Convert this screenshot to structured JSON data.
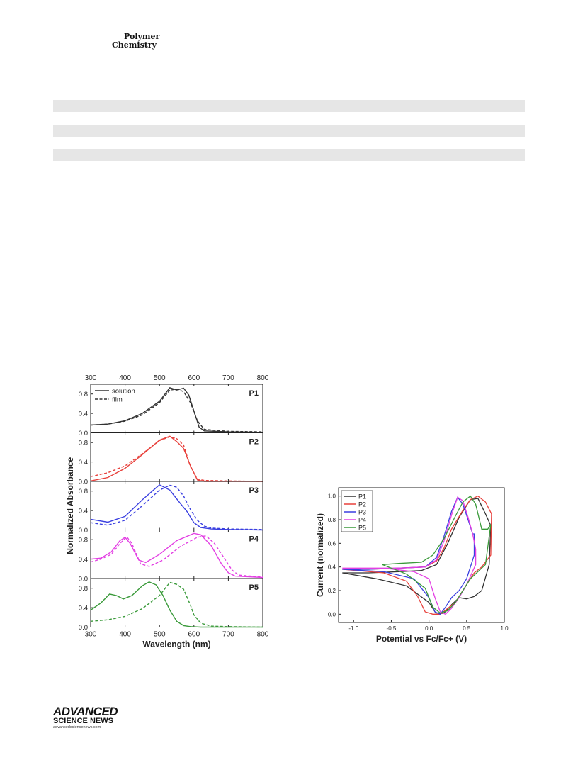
{
  "header": {
    "journal_line1": "Polymer",
    "journal_line2": "Chemistry"
  },
  "footer": {
    "publisher_line1": "ADVANCED",
    "publisher_line2": "SCIENCE NEWS",
    "publisher_url": "advancedsciencenews.com"
  },
  "colors": {
    "P1": "#333333",
    "P2": "#e8413c",
    "P3": "#3a3fe0",
    "P4": "#e33fe3",
    "P5": "#3a9a3a"
  },
  "chart_data": [
    {
      "type": "line",
      "xlabel": "Wavelength (nm)",
      "ylabel": "Normalized Absorbance",
      "xlim": [
        300,
        800
      ],
      "ylim": [
        0,
        1.0
      ],
      "xticks": [
        "300",
        "400",
        "500",
        "600",
        "700",
        "800"
      ],
      "yticks": [
        "0.0",
        "0.4",
        "0.8"
      ],
      "legend": {
        "position": "top-left",
        "entries": [
          "solution",
          "film"
        ]
      },
      "panels": [
        {
          "label": "P1",
          "series": [
            {
              "name": "solution",
              "style": "solid",
              "x": [
                300,
                350,
                400,
                450,
                500,
                530,
                550,
                570,
                585,
                600,
                615,
                630,
                700,
                800
              ],
              "y": [
                0.16,
                0.18,
                0.25,
                0.4,
                0.65,
                0.93,
                0.88,
                0.92,
                0.78,
                0.45,
                0.12,
                0.04,
                0.02,
                0.01
              ]
            },
            {
              "name": "film",
              "style": "dashed",
              "x": [
                300,
                350,
                400,
                450,
                500,
                530,
                550,
                570,
                590,
                610,
                630,
                700,
                800
              ],
              "y": [
                0.16,
                0.18,
                0.24,
                0.37,
                0.62,
                0.88,
                0.9,
                0.85,
                0.62,
                0.25,
                0.07,
                0.03,
                0.02
              ]
            }
          ]
        },
        {
          "label": "P2",
          "series": [
            {
              "name": "solution",
              "style": "solid",
              "x": [
                300,
                350,
                400,
                450,
                500,
                530,
                550,
                570,
                590,
                610,
                630,
                700,
                800
              ],
              "y": [
                0.01,
                0.08,
                0.27,
                0.55,
                0.85,
                0.93,
                0.82,
                0.68,
                0.32,
                0.03,
                0.0,
                0.0,
                0.0
              ]
            },
            {
              "name": "film",
              "style": "dashed",
              "x": [
                300,
                350,
                400,
                450,
                500,
                530,
                550,
                570,
                590,
                610,
                630,
                700,
                800
              ],
              "y": [
                0.1,
                0.18,
                0.32,
                0.57,
                0.84,
                0.92,
                0.88,
                0.75,
                0.3,
                0.05,
                0.02,
                0.01,
                0.0
              ]
            }
          ]
        },
        {
          "label": "P3",
          "series": [
            {
              "name": "solution",
              "style": "solid",
              "x": [
                300,
                350,
                400,
                450,
                500,
                530,
                560,
                580,
                600,
                620,
                650,
                700,
                800
              ],
              "y": [
                0.22,
                0.16,
                0.28,
                0.62,
                0.93,
                0.82,
                0.55,
                0.38,
                0.15,
                0.05,
                0.02,
                0.01,
                0.0
              ]
            },
            {
              "name": "film",
              "style": "dashed",
              "x": [
                300,
                350,
                400,
                450,
                500,
                530,
                550,
                570,
                590,
                610,
                630,
                650,
                700,
                800
              ],
              "y": [
                0.15,
                0.1,
                0.2,
                0.5,
                0.82,
                0.92,
                0.88,
                0.7,
                0.42,
                0.2,
                0.08,
                0.04,
                0.02,
                0.01
              ]
            }
          ]
        },
        {
          "label": "P4",
          "series": [
            {
              "name": "solution",
              "style": "solid",
              "x": [
                300,
                330,
                360,
                385,
                400,
                415,
                440,
                460,
                500,
                550,
                600,
                620,
                650,
                680,
                700,
                720,
                800
              ],
              "y": [
                0.4,
                0.42,
                0.55,
                0.78,
                0.85,
                0.72,
                0.38,
                0.33,
                0.5,
                0.78,
                0.93,
                0.9,
                0.68,
                0.3,
                0.12,
                0.05,
                0.02
              ]
            },
            {
              "name": "film",
              "style": "dashed",
              "x": [
                300,
                330,
                360,
                385,
                405,
                420,
                445,
                470,
                510,
                560,
                610,
                635,
                660,
                690,
                710,
                730,
                800
              ],
              "y": [
                0.34,
                0.4,
                0.5,
                0.72,
                0.86,
                0.72,
                0.3,
                0.25,
                0.38,
                0.66,
                0.85,
                0.88,
                0.72,
                0.4,
                0.18,
                0.07,
                0.03
              ]
            }
          ]
        },
        {
          "label": "P5",
          "series": [
            {
              "name": "solution",
              "style": "solid",
              "x": [
                300,
                330,
                355,
                375,
                395,
                420,
                450,
                470,
                490,
                510,
                530,
                550,
                570,
                590,
                620,
                700,
                800
              ],
              "y": [
                0.35,
                0.5,
                0.68,
                0.65,
                0.58,
                0.65,
                0.85,
                0.93,
                0.87,
                0.65,
                0.35,
                0.12,
                0.03,
                0.01,
                0.0,
                0.0,
                0.0
              ]
            },
            {
              "name": "film",
              "style": "dashed",
              "x": [
                300,
                350,
                400,
                450,
                500,
                530,
                550,
                570,
                590,
                600,
                620,
                650,
                700,
                800
              ],
              "y": [
                0.12,
                0.15,
                0.22,
                0.38,
                0.65,
                0.92,
                0.88,
                0.78,
                0.45,
                0.25,
                0.08,
                0.02,
                0.01,
                0.0
              ]
            }
          ]
        }
      ]
    },
    {
      "type": "line",
      "xlabel": "Potential vs Fc/Fc+ (V)",
      "ylabel": "Current (normalized)",
      "xlim": [
        -1.2,
        1.0
      ],
      "ylim": [
        -0.07,
        1.07
      ],
      "xticks": [
        "-1.0",
        "-0.5",
        "0.0",
        "0.5",
        "1.0"
      ],
      "yticks": [
        "0.0",
        "0.2",
        "0.4",
        "0.6",
        "0.8",
        "1.0"
      ],
      "legend": {
        "position": "top-left",
        "entries": [
          "P1",
          "P2",
          "P3",
          "P4",
          "P5"
        ]
      },
      "series": [
        {
          "name": "P1",
          "x": [
            -1.15,
            -0.8,
            -0.4,
            -0.1,
            0.1,
            0.25,
            0.4,
            0.55,
            0.65,
            0.75,
            0.82,
            0.8,
            0.7,
            0.6,
            0.5,
            0.4,
            0.3,
            0.2,
            0.1,
            0.0,
            -0.3,
            -0.7,
            -1.15
          ],
          "y": [
            0.35,
            0.35,
            0.36,
            0.37,
            0.42,
            0.6,
            0.82,
            0.97,
            0.98,
            0.85,
            0.75,
            0.42,
            0.2,
            0.15,
            0.13,
            0.14,
            0.08,
            0.01,
            0.0,
            0.1,
            0.24,
            0.3,
            0.35
          ]
        },
        {
          "name": "P2",
          "x": [
            -1.15,
            -0.8,
            -0.4,
            -0.05,
            0.1,
            0.2,
            0.3,
            0.45,
            0.55,
            0.65,
            0.75,
            0.83,
            0.82,
            0.7,
            0.6,
            0.45,
            0.35,
            0.25,
            0.15,
            0.05,
            -0.05,
            -0.15,
            -0.3,
            -0.6,
            -1.15
          ],
          "y": [
            0.38,
            0.38,
            0.39,
            0.4,
            0.45,
            0.56,
            0.72,
            0.88,
            0.97,
            1.0,
            0.95,
            0.85,
            0.5,
            0.4,
            0.35,
            0.2,
            0.1,
            0.05,
            0.0,
            0.0,
            0.02,
            0.15,
            0.28,
            0.35,
            0.38
          ]
        },
        {
          "name": "P3",
          "x": [
            -1.15,
            -0.8,
            -0.4,
            -0.05,
            0.1,
            0.2,
            0.3,
            0.38,
            0.45,
            0.52,
            0.58,
            0.6,
            0.6,
            0.5,
            0.4,
            0.3,
            0.22,
            0.15,
            0.08,
            0.0,
            -0.2,
            -0.6,
            -1.15
          ],
          "y": [
            0.38,
            0.38,
            0.39,
            0.4,
            0.48,
            0.66,
            0.87,
            0.99,
            0.93,
            0.8,
            0.68,
            0.68,
            0.5,
            0.3,
            0.2,
            0.14,
            0.06,
            0.0,
            0.02,
            0.14,
            0.3,
            0.36,
            0.38
          ]
        },
        {
          "name": "P4",
          "x": [
            -1.15,
            -0.8,
            -0.4,
            -0.05,
            0.1,
            0.2,
            0.3,
            0.38,
            0.45,
            0.52,
            0.58,
            0.62,
            0.62,
            0.5,
            0.4,
            0.3,
            0.22,
            0.15,
            0.08,
            0.0,
            -0.2,
            -0.6,
            -1.15
          ],
          "y": [
            0.39,
            0.39,
            0.39,
            0.4,
            0.46,
            0.62,
            0.84,
            0.99,
            0.96,
            0.82,
            0.68,
            0.55,
            0.42,
            0.25,
            0.14,
            0.05,
            0.0,
            0.02,
            0.14,
            0.3,
            0.36,
            0.39,
            0.39
          ]
        },
        {
          "name": "P5",
          "x": [
            -0.62,
            -0.4,
            -0.1,
            0.05,
            0.2,
            0.35,
            0.45,
            0.55,
            0.62,
            0.7,
            0.78,
            0.82,
            0.75,
            0.65,
            0.55,
            0.45,
            0.35,
            0.25,
            0.15,
            0.05,
            -0.05,
            -0.3,
            -0.62
          ],
          "y": [
            0.42,
            0.43,
            0.44,
            0.5,
            0.64,
            0.83,
            0.95,
            1.0,
            0.93,
            0.72,
            0.72,
            0.76,
            0.42,
            0.36,
            0.3,
            0.2,
            0.1,
            0.03,
            0.01,
            0.06,
            0.22,
            0.34,
            0.42
          ]
        }
      ]
    }
  ]
}
